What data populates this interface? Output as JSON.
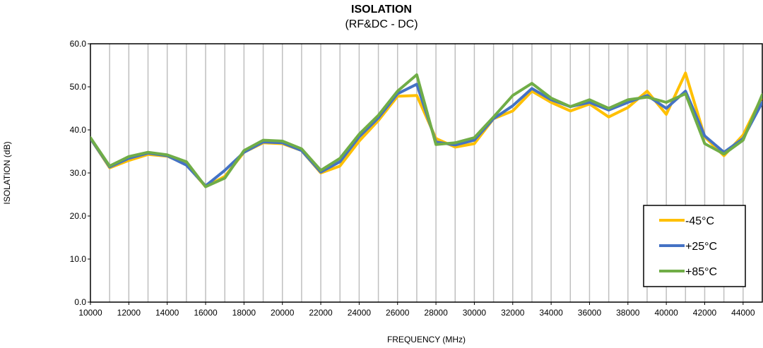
{
  "chart_data": {
    "type": "line",
    "title": "ISOLATION",
    "subtitle": "(RF&DC - DC)",
    "xlabel": "FREQUENCY (MHz)",
    "ylabel": "ISOLATION (dB)",
    "xlim": [
      10000,
      45000
    ],
    "ylim": [
      0,
      60
    ],
    "x_ticks": [
      10000,
      12000,
      14000,
      16000,
      18000,
      20000,
      22000,
      24000,
      26000,
      28000,
      30000,
      32000,
      34000,
      36000,
      38000,
      40000,
      42000,
      44000
    ],
    "y_ticks": [
      "0.0",
      "10.0",
      "20.0",
      "30.0",
      "40.0",
      "50.0",
      "60.0"
    ],
    "grid": "vertical",
    "legend_position": "bottom-right",
    "x": [
      10000,
      11000,
      12000,
      13000,
      14000,
      15000,
      16000,
      17000,
      18000,
      19000,
      20000,
      21000,
      22000,
      23000,
      24000,
      25000,
      26000,
      27000,
      28000,
      29000,
      30000,
      31000,
      32000,
      33000,
      34000,
      35000,
      36000,
      37000,
      38000,
      39000,
      40000,
      41000,
      42000,
      43000,
      44000,
      45000
    ],
    "series": [
      {
        "name": "-45°C",
        "color": "#FFC000",
        "values": [
          38.0,
          31.2,
          32.9,
          34.3,
          33.9,
          32.0,
          26.8,
          29.2,
          34.8,
          37.0,
          36.8,
          35.2,
          30.0,
          31.6,
          37.4,
          42.2,
          47.8,
          48.0,
          38.0,
          36.0,
          36.8,
          42.6,
          44.4,
          49.0,
          46.4,
          44.4,
          46.0,
          43.0,
          45.2,
          49.0,
          43.6,
          53.2,
          38.4,
          34.0,
          38.8,
          47.8
        ]
      },
      {
        "name": "+25°C",
        "color": "#4472C4",
        "values": [
          38.0,
          31.4,
          33.4,
          34.6,
          34.0,
          31.8,
          27.0,
          30.6,
          34.8,
          37.2,
          37.0,
          35.2,
          30.2,
          32.6,
          38.4,
          42.8,
          48.4,
          50.6,
          37.2,
          36.5,
          37.6,
          42.6,
          45.6,
          49.6,
          47.0,
          45.4,
          46.4,
          44.6,
          46.4,
          48.0,
          45.0,
          49.0,
          38.6,
          34.8,
          38.0,
          46.4
        ]
      },
      {
        "name": "+85°C",
        "color": "#70AD47",
        "values": [
          38.2,
          31.6,
          33.8,
          34.8,
          34.2,
          32.6,
          26.8,
          28.8,
          35.2,
          37.6,
          37.4,
          35.6,
          30.6,
          33.4,
          39.0,
          43.4,
          49.0,
          52.8,
          36.6,
          37.0,
          38.2,
          43.0,
          48.0,
          50.8,
          47.4,
          45.4,
          47.0,
          45.0,
          47.0,
          47.6,
          46.4,
          48.4,
          36.8,
          34.4,
          37.6,
          48.2
        ]
      }
    ]
  }
}
